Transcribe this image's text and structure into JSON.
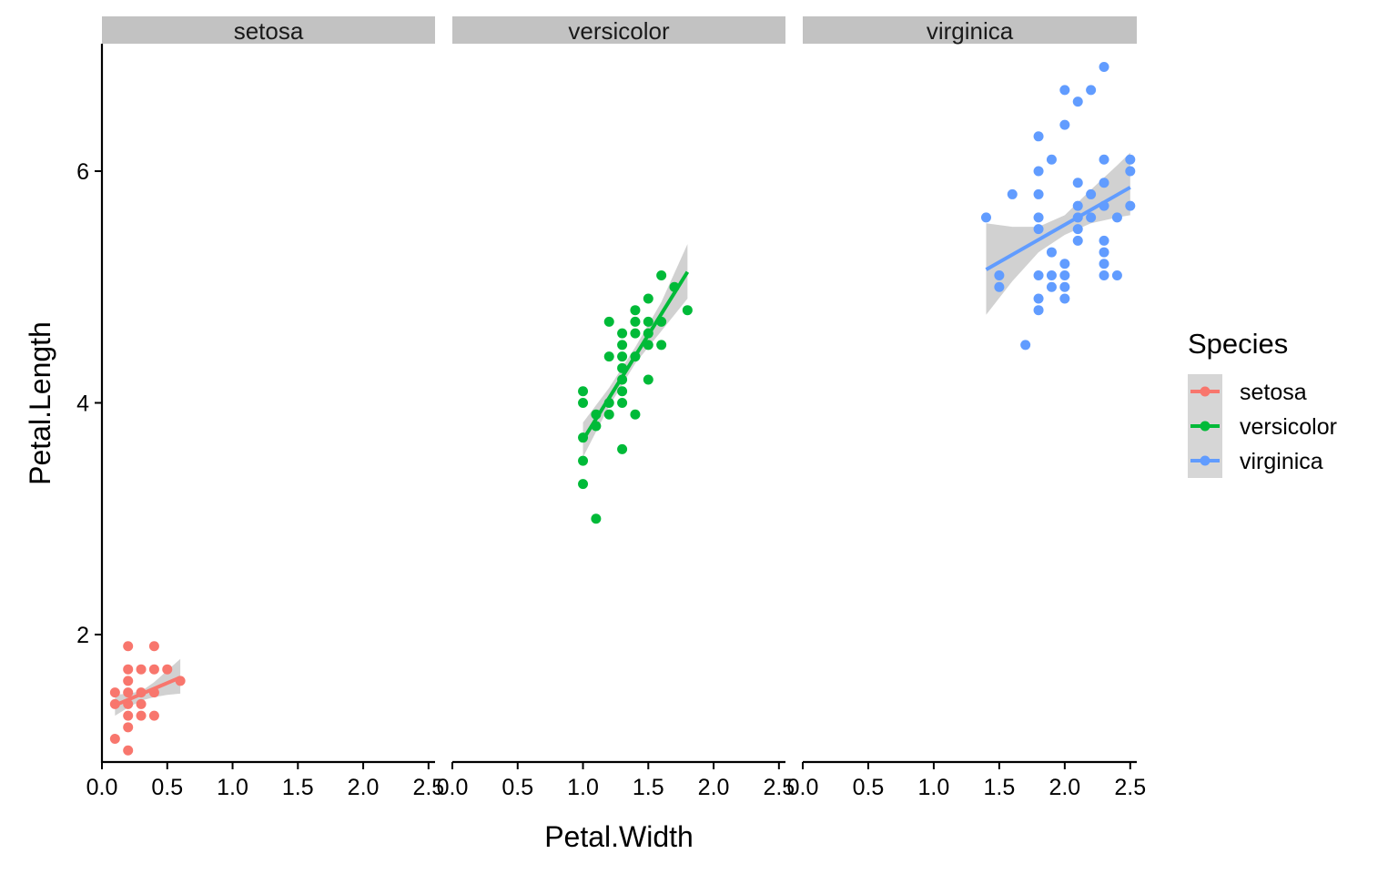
{
  "chart_data": {
    "type": "scatter",
    "xlabel": "Petal.Width",
    "ylabel": "Petal.Length",
    "xlim": [
      0,
      2.55
    ],
    "ylim": [
      0.9,
      7.1
    ],
    "xticks": [
      0.0,
      0.5,
      1.0,
      1.5,
      2.0,
      2.5
    ],
    "xtick_labels": [
      "0.0",
      "0.5",
      "1.0",
      "1.5",
      "2.0",
      "2.5"
    ],
    "yticks": [
      2,
      4,
      6
    ],
    "ytick_labels": [
      "2",
      "4",
      "6"
    ],
    "grid": false,
    "facets": [
      "setosa",
      "versicolor",
      "virginica"
    ],
    "legend": {
      "title": "Species",
      "position": "right"
    },
    "series": [
      {
        "name": "setosa",
        "color": "#F8766D",
        "points": [
          [
            0.1,
            1.1
          ],
          [
            0.1,
            1.4
          ],
          [
            0.1,
            1.5
          ],
          [
            0.2,
            1.0
          ],
          [
            0.2,
            1.2
          ],
          [
            0.2,
            1.3
          ],
          [
            0.2,
            1.4
          ],
          [
            0.2,
            1.5
          ],
          [
            0.2,
            1.6
          ],
          [
            0.2,
            1.7
          ],
          [
            0.2,
            1.9
          ],
          [
            0.3,
            1.3
          ],
          [
            0.3,
            1.4
          ],
          [
            0.3,
            1.5
          ],
          [
            0.3,
            1.7
          ],
          [
            0.4,
            1.3
          ],
          [
            0.4,
            1.5
          ],
          [
            0.4,
            1.7
          ],
          [
            0.4,
            1.9
          ],
          [
            0.5,
            1.7
          ],
          [
            0.6,
            1.6
          ]
        ],
        "fit": {
          "x": [
            0.1,
            0.6
          ],
          "y": [
            1.39,
            1.63
          ]
        },
        "band": {
          "x": [
            0.1,
            0.2,
            0.3,
            0.4,
            0.5,
            0.6
          ],
          "lower": [
            1.3,
            1.37,
            1.43,
            1.46,
            1.48,
            1.49
          ],
          "upper": [
            1.48,
            1.49,
            1.51,
            1.59,
            1.69,
            1.79
          ]
        }
      },
      {
        "name": "versicolor",
        "color": "#00BA38",
        "points": [
          [
            1.0,
            3.3
          ],
          [
            1.0,
            3.5
          ],
          [
            1.0,
            3.7
          ],
          [
            1.0,
            4.0
          ],
          [
            1.0,
            4.1
          ],
          [
            1.1,
            3.0
          ],
          [
            1.1,
            3.8
          ],
          [
            1.1,
            3.9
          ],
          [
            1.2,
            3.9
          ],
          [
            1.2,
            4.0
          ],
          [
            1.2,
            4.4
          ],
          [
            1.2,
            4.7
          ],
          [
            1.3,
            3.6
          ],
          [
            1.3,
            4.0
          ],
          [
            1.3,
            4.1
          ],
          [
            1.3,
            4.2
          ],
          [
            1.3,
            4.3
          ],
          [
            1.3,
            4.4
          ],
          [
            1.3,
            4.5
          ],
          [
            1.3,
            4.6
          ],
          [
            1.4,
            3.9
          ],
          [
            1.4,
            4.4
          ],
          [
            1.4,
            4.6
          ],
          [
            1.4,
            4.7
          ],
          [
            1.4,
            4.8
          ],
          [
            1.5,
            4.2
          ],
          [
            1.5,
            4.5
          ],
          [
            1.5,
            4.6
          ],
          [
            1.5,
            4.7
          ],
          [
            1.5,
            4.9
          ],
          [
            1.6,
            4.5
          ],
          [
            1.6,
            4.7
          ],
          [
            1.6,
            5.1
          ],
          [
            1.7,
            5.0
          ],
          [
            1.8,
            4.8
          ]
        ],
        "fit": {
          "x": [
            1.0,
            1.8
          ],
          "y": [
            3.68,
            5.13
          ]
        },
        "band": {
          "x": [
            1.0,
            1.2,
            1.4,
            1.6,
            1.8
          ],
          "lower": [
            3.53,
            3.97,
            4.34,
            4.62,
            4.9
          ],
          "upper": [
            3.83,
            4.13,
            4.48,
            4.87,
            5.37
          ]
        }
      },
      {
        "name": "virginica",
        "color": "#619CFF",
        "points": [
          [
            1.4,
            5.6
          ],
          [
            1.5,
            5.0
          ],
          [
            1.5,
            5.1
          ],
          [
            1.6,
            5.8
          ],
          [
            1.7,
            4.5
          ],
          [
            1.8,
            4.8
          ],
          [
            1.8,
            4.9
          ],
          [
            1.8,
            5.1
          ],
          [
            1.8,
            5.5
          ],
          [
            1.8,
            5.6
          ],
          [
            1.8,
            5.8
          ],
          [
            1.8,
            6.0
          ],
          [
            1.8,
            6.3
          ],
          [
            1.9,
            5.0
          ],
          [
            1.9,
            5.1
          ],
          [
            1.9,
            5.3
          ],
          [
            1.9,
            6.1
          ],
          [
            2.0,
            4.9
          ],
          [
            2.0,
            5.0
          ],
          [
            2.0,
            5.1
          ],
          [
            2.0,
            5.2
          ],
          [
            2.0,
            6.4
          ],
          [
            2.0,
            6.7
          ],
          [
            2.1,
            5.4
          ],
          [
            2.1,
            5.5
          ],
          [
            2.1,
            5.6
          ],
          [
            2.1,
            5.7
          ],
          [
            2.1,
            5.9
          ],
          [
            2.1,
            6.6
          ],
          [
            2.2,
            5.6
          ],
          [
            2.2,
            5.8
          ],
          [
            2.2,
            6.7
          ],
          [
            2.3,
            5.1
          ],
          [
            2.3,
            5.2
          ],
          [
            2.3,
            5.3
          ],
          [
            2.3,
            5.4
          ],
          [
            2.3,
            5.7
          ],
          [
            2.3,
            5.9
          ],
          [
            2.3,
            6.1
          ],
          [
            2.3,
            6.9
          ],
          [
            2.4,
            5.1
          ],
          [
            2.4,
            5.6
          ],
          [
            2.5,
            5.7
          ],
          [
            2.5,
            6.0
          ],
          [
            2.5,
            6.1
          ]
        ],
        "fit": {
          "x": [
            1.4,
            2.5
          ],
          "y": [
            5.15,
            5.86
          ]
        },
        "band": {
          "x": [
            1.4,
            1.6,
            1.8,
            2.0,
            2.2,
            2.4,
            2.5
          ],
          "lower": [
            4.76,
            5.05,
            5.3,
            5.45,
            5.55,
            5.6,
            5.62
          ],
          "upper": [
            5.55,
            5.52,
            5.52,
            5.62,
            5.84,
            6.05,
            6.16
          ]
        }
      }
    ]
  }
}
